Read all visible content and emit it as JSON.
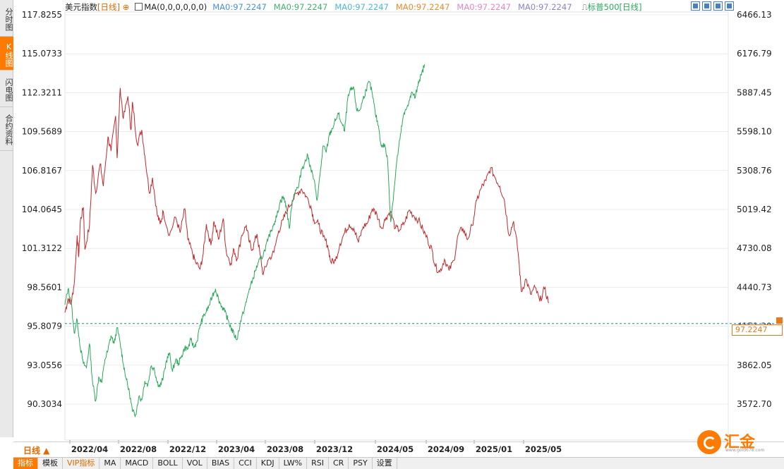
{
  "side_tabs": [
    {
      "label": "分时图",
      "active": false
    },
    {
      "label": "K线图",
      "active": true
    },
    {
      "label": "闪电图",
      "active": false
    },
    {
      "label": "合约资料",
      "active": false
    }
  ],
  "legend": {
    "name": "美元指数",
    "period": "[日线]",
    "ma_params": "MA(0,0,0,0,0,0)",
    "ma_values": [
      "MA0:97.2247",
      "MA0:97.2247",
      "MA0:97.2247",
      "MA0:97.2247",
      "MA0:97.2247",
      "MA0:97.2247"
    ],
    "ma_colors": [
      "#4a8fd8",
      "#3fb36a",
      "#49b8d0",
      "#f0882a",
      "#e384c8",
      "#8e7fd0"
    ],
    "overlay": "标普500",
    "overlay_period": "[日线]"
  },
  "toolbar": {
    "buttons": [
      "zoom-in-icon",
      "zoom-out-icon",
      "reset-icon",
      "settings-icon"
    ]
  },
  "price_tag": "97.2247",
  "period_button": "日线 ▲",
  "bottom_tabs": [
    {
      "label": "指标",
      "active": true,
      "vip": false
    },
    {
      "label": "模板",
      "active": false,
      "vip": false
    },
    {
      "label": "VIP指标",
      "active": false,
      "vip": true
    },
    {
      "label": "MA",
      "active": false,
      "vip": false
    },
    {
      "label": "MACD",
      "active": false,
      "vip": false
    },
    {
      "label": "BOLL",
      "active": false,
      "vip": false
    },
    {
      "label": "VOL",
      "active": false,
      "vip": false
    },
    {
      "label": "BIAS",
      "active": false,
      "vip": false
    },
    {
      "label": "CCI",
      "active": false,
      "vip": false
    },
    {
      "label": "KDJ",
      "active": false,
      "vip": false
    },
    {
      "label": "LW%",
      "active": false,
      "vip": false
    },
    {
      "label": "RSI",
      "active": false,
      "vip": false
    },
    {
      "label": "CR",
      "active": false,
      "vip": false
    },
    {
      "label": "PSY",
      "active": false,
      "vip": false
    },
    {
      "label": "设置",
      "active": false,
      "vip": false
    }
  ],
  "logo": {
    "text": "汇金网",
    "sub": "www.gold678.com"
  },
  "chart_data": {
    "type": "line",
    "x_labels": [
      "2022/04",
      "2022/08",
      "2022/12",
      "2023/04",
      "2023/08",
      "2023/12",
      "2024/05",
      "2024/09",
      "2025/01",
      "2025/05"
    ],
    "left_axis_ticks": [
      "117.8255",
      "115.0733",
      "112.3211",
      "109.5689",
      "106.8167",
      "104.0645",
      "101.3122",
      "98.5601",
      "95.8079",
      "93.0556",
      "90.3034"
    ],
    "right_axis_ticks": [
      "6466.13",
      "6176.79",
      "5887.45",
      "5598.10",
      "5308.76",
      "5019.42",
      "4730.08",
      "4440.73",
      "4151.39",
      "3862.05",
      "3572.70"
    ],
    "left_range": [
      88.93,
      119.2
    ],
    "right_range": [
      3428.03,
      6610.8
    ],
    "current_value": 97.2247,
    "series": [
      {
        "name": "美元指数",
        "color": "#c0282c",
        "axis": "left",
        "points": [
          [
            0,
            98.0
          ],
          [
            0.02,
            99.0
          ],
          [
            0.04,
            98.6
          ],
          [
            0.06,
            100.0
          ],
          [
            0.08,
            103.5
          ],
          [
            0.09,
            102.0
          ],
          [
            0.1,
            104.5
          ],
          [
            0.12,
            105.5
          ],
          [
            0.13,
            102.5
          ],
          [
            0.16,
            104.2
          ],
          [
            0.18,
            108.5
          ],
          [
            0.2,
            106.5
          ],
          [
            0.23,
            108.6
          ],
          [
            0.25,
            107.0
          ],
          [
            0.28,
            110.5
          ],
          [
            0.3,
            109.5
          ],
          [
            0.33,
            112.0
          ],
          [
            0.34,
            109.0
          ],
          [
            0.36,
            114.0
          ],
          [
            0.38,
            111.8
          ],
          [
            0.41,
            113.4
          ],
          [
            0.43,
            111.0
          ],
          [
            0.44,
            113.0
          ],
          [
            0.47,
            110.0
          ],
          [
            0.5,
            111.0
          ],
          [
            0.52,
            109.2
          ],
          [
            0.55,
            106.5
          ],
          [
            0.57,
            107.6
          ],
          [
            0.6,
            105.0
          ],
          [
            0.62,
            104.3
          ],
          [
            0.64,
            105.2
          ],
          [
            0.68,
            103.5
          ],
          [
            0.72,
            104.8
          ],
          [
            0.75,
            103.7
          ],
          [
            0.78,
            105.4
          ],
          [
            0.8,
            103.2
          ],
          [
            0.83,
            102.2
          ],
          [
            0.85,
            101.6
          ],
          [
            0.88,
            101.1
          ],
          [
            0.9,
            102.2
          ],
          [
            0.92,
            104.3
          ],
          [
            0.95,
            102.8
          ],
          [
            0.97,
            104.5
          ],
          [
            1.0,
            103.2
          ],
          [
            1.03,
            104.7
          ],
          [
            1.05,
            102.3
          ],
          [
            1.08,
            101.5
          ],
          [
            1.1,
            102.5
          ],
          [
            1.12,
            101.8
          ],
          [
            1.15,
            103.5
          ],
          [
            1.18,
            104.2
          ],
          [
            1.2,
            103.0
          ],
          [
            1.22,
            102.5
          ],
          [
            1.25,
            103.6
          ],
          [
            1.27,
            102.1
          ],
          [
            1.29,
            100.7
          ],
          [
            1.32,
            101.7
          ],
          [
            1.36,
            102.3
          ],
          [
            1.39,
            103.8
          ],
          [
            1.42,
            104.6
          ],
          [
            1.45,
            105.4
          ],
          [
            1.48,
            106.0
          ],
          [
            1.51,
            106.5
          ],
          [
            1.54,
            106.8
          ],
          [
            1.57,
            106.3
          ],
          [
            1.6,
            105.6
          ],
          [
            1.62,
            104.6
          ],
          [
            1.65,
            104.3
          ],
          [
            1.68,
            103.4
          ],
          [
            1.71,
            102.8
          ],
          [
            1.73,
            101.6
          ],
          [
            1.76,
            101.7
          ],
          [
            1.79,
            102.9
          ],
          [
            1.82,
            103.7
          ],
          [
            1.85,
            104.3
          ],
          [
            1.88,
            104.0
          ],
          [
            1.91,
            103.0
          ],
          [
            1.94,
            104.1
          ],
          [
            1.97,
            104.4
          ],
          [
            2.0,
            105.4
          ],
          [
            2.03,
            105.0
          ],
          [
            2.06,
            104.0
          ],
          [
            2.09,
            104.8
          ],
          [
            2.12,
            105.2
          ],
          [
            2.15,
            104.0
          ],
          [
            2.18,
            103.9
          ],
          [
            2.21,
            104.4
          ],
          [
            2.24,
            105.3
          ],
          [
            2.27,
            104.9
          ],
          [
            2.3,
            104.6
          ],
          [
            2.33,
            103.9
          ],
          [
            2.36,
            103.2
          ],
          [
            2.39,
            102.4
          ],
          [
            2.41,
            101.3
          ],
          [
            2.44,
            100.9
          ],
          [
            2.47,
            101.8
          ],
          [
            2.5,
            101.0
          ],
          [
            2.53,
            101.7
          ],
          [
            2.56,
            103.6
          ],
          [
            2.59,
            104.0
          ],
          [
            2.62,
            103.2
          ],
          [
            2.65,
            104.2
          ],
          [
            2.68,
            106.0
          ],
          [
            2.71,
            106.9
          ],
          [
            2.74,
            107.4
          ],
          [
            2.77,
            108.3
          ],
          [
            2.8,
            107.6
          ],
          [
            2.83,
            107.0
          ],
          [
            2.86,
            106.0
          ],
          [
            2.89,
            103.5
          ],
          [
            2.92,
            104.5
          ],
          [
            2.95,
            102.2
          ],
          [
            2.97,
            99.5
          ],
          [
            3.0,
            100.4
          ],
          [
            3.03,
            99.3
          ],
          [
            3.06,
            99.8
          ],
          [
            3.09,
            98.8
          ],
          [
            3.12,
            99.7
          ],
          [
            3.15,
            98.7
          ]
        ]
      },
      {
        "name": "标普500",
        "color": "#2aa85a",
        "axis": "right",
        "points": [
          [
            0,
            4440.7
          ],
          [
            0.02,
            4560.0
          ],
          [
            0.04,
            4470.0
          ],
          [
            0.06,
            4230.0
          ],
          [
            0.08,
            4330.0
          ],
          [
            0.1,
            4120.0
          ],
          [
            0.12,
            4000.0
          ],
          [
            0.14,
            3970.0
          ],
          [
            0.16,
            4150.0
          ],
          [
            0.18,
            3860.0
          ],
          [
            0.2,
            3720.0
          ],
          [
            0.22,
            3900.0
          ],
          [
            0.24,
            3860.0
          ],
          [
            0.26,
            4030.0
          ],
          [
            0.28,
            4100.0
          ],
          [
            0.3,
            4210.0
          ],
          [
            0.32,
            4150.0
          ],
          [
            0.34,
            4270.0
          ],
          [
            0.36,
            4150.0
          ],
          [
            0.38,
            4000.0
          ],
          [
            0.4,
            3880.0
          ],
          [
            0.42,
            3780.0
          ],
          [
            0.44,
            3640.0
          ],
          [
            0.46,
            3620.0
          ],
          [
            0.48,
            3750.0
          ],
          [
            0.5,
            3730.0
          ],
          [
            0.52,
            3870.0
          ],
          [
            0.54,
            3840.0
          ],
          [
            0.56,
            3980.0
          ],
          [
            0.58,
            3970.0
          ],
          [
            0.6,
            3860.0
          ],
          [
            0.62,
            3830.0
          ],
          [
            0.64,
            3900.0
          ],
          [
            0.66,
            4020.0
          ],
          [
            0.68,
            4080.0
          ],
          [
            0.7,
            3940.0
          ],
          [
            0.72,
            4030.0
          ],
          [
            0.74,
            4000.0
          ],
          [
            0.76,
            4060.0
          ],
          [
            0.78,
            4120.0
          ],
          [
            0.8,
            4110.0
          ],
          [
            0.82,
            4180.0
          ],
          [
            0.84,
            4120.0
          ],
          [
            0.86,
            4170.0
          ],
          [
            0.88,
            4290.0
          ],
          [
            0.9,
            4350.0
          ],
          [
            0.92,
            4390.0
          ],
          [
            0.94,
            4440.0
          ],
          [
            0.96,
            4510.0
          ],
          [
            0.98,
            4560.0
          ],
          [
            1.0,
            4480.0
          ],
          [
            1.02,
            4430.0
          ],
          [
            1.04,
            4390.0
          ],
          [
            1.06,
            4330.0
          ],
          [
            1.08,
            4270.0
          ],
          [
            1.1,
            4220.0
          ],
          [
            1.12,
            4180.0
          ],
          [
            1.14,
            4300.0
          ],
          [
            1.16,
            4380.0
          ],
          [
            1.18,
            4460.0
          ],
          [
            1.2,
            4560.0
          ],
          [
            1.22,
            4620.0
          ],
          [
            1.24,
            4700.0
          ],
          [
            1.26,
            4760.0
          ],
          [
            1.28,
            4790.0
          ],
          [
            1.3,
            4850.0
          ],
          [
            1.32,
            4920.0
          ],
          [
            1.34,
            4990.0
          ],
          [
            1.36,
            5050.0
          ],
          [
            1.38,
            5110.0
          ],
          [
            1.4,
            5210.0
          ],
          [
            1.42,
            5250.0
          ],
          [
            1.44,
            5180.0
          ],
          [
            1.46,
            5010.0
          ],
          [
            1.48,
            5220.0
          ],
          [
            1.5,
            5300.0
          ],
          [
            1.52,
            5320.0
          ],
          [
            1.54,
            5460.0
          ],
          [
            1.56,
            5500.0
          ],
          [
            1.58,
            5560.0
          ],
          [
            1.6,
            5460.0
          ],
          [
            1.62,
            5380.0
          ],
          [
            1.64,
            5220.0
          ],
          [
            1.66,
            5410.0
          ],
          [
            1.68,
            5630.0
          ],
          [
            1.7,
            5580.0
          ],
          [
            1.72,
            5710.0
          ],
          [
            1.74,
            5760.0
          ],
          [
            1.76,
            5820.0
          ],
          [
            1.78,
            5870.0
          ],
          [
            1.8,
            5800.0
          ],
          [
            1.82,
            5740.0
          ],
          [
            1.84,
            5980.0
          ],
          [
            1.86,
            6050.0
          ],
          [
            1.88,
            6060.0
          ],
          [
            1.9,
            5890.0
          ],
          [
            1.92,
            5900.0
          ],
          [
            1.94,
            5980.0
          ],
          [
            1.96,
            6050.0
          ],
          [
            1.98,
            6110.0
          ],
          [
            2.0,
            6020.0
          ],
          [
            2.02,
            5870.0
          ],
          [
            2.04,
            5780.0
          ],
          [
            2.06,
            5620.0
          ],
          [
            2.08,
            5640.0
          ],
          [
            2.1,
            5520.0
          ],
          [
            2.12,
            5060.0
          ],
          [
            2.14,
            5280.0
          ],
          [
            2.16,
            5520.0
          ],
          [
            2.18,
            5680.0
          ],
          [
            2.2,
            5840.0
          ],
          [
            2.22,
            5900.0
          ],
          [
            2.24,
            5970.0
          ],
          [
            2.26,
            6030.0
          ],
          [
            2.28,
            5990.0
          ],
          [
            2.3,
            6110.0
          ],
          [
            2.32,
            6160.0
          ],
          [
            2.34,
            6240.0
          ]
        ]
      }
    ],
    "grid": true
  }
}
